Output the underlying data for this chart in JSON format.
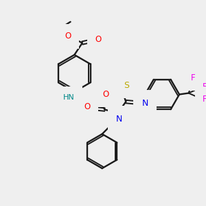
{
  "background_color": "#efefef",
  "figsize": [
    3.0,
    3.0
  ],
  "dpi": 100,
  "colors": {
    "C": "#1a1a1a",
    "N": "#0000ee",
    "O": "#ff0000",
    "S": "#bbaa00",
    "F": "#ee00ee",
    "H": "#008888",
    "bond": "#1a1a1a"
  }
}
